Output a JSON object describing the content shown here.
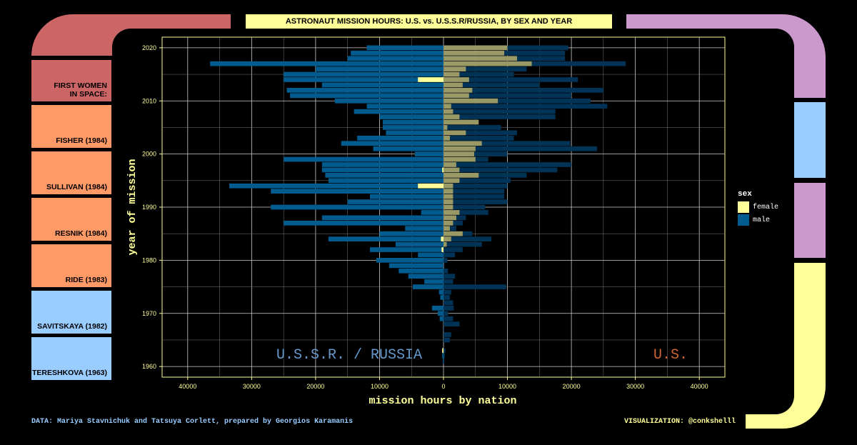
{
  "title": "ASTRONAUT MISSION HOURS: U.S. vs. U.S.S.R/RUSSIA, BY SEX AND YEAR",
  "sidebar": {
    "items": [
      {
        "label": "FIRST WOMEN\nIN SPACE:",
        "color": "#cc6666"
      },
      {
        "label": "FISHER (1984)",
        "color": "#ff9966"
      },
      {
        "label": "SULLIVAN (1984)",
        "color": "#ff9966"
      },
      {
        "label": "RESNIK (1984)",
        "color": "#ff9966"
      },
      {
        "label": "RIDE (1983)",
        "color": "#ff9966"
      },
      {
        "label": "SAVITSKAYA (1982)",
        "color": "#99ccff"
      },
      {
        "label": "TERESHKOVA (1963)",
        "color": "#99ccff"
      }
    ]
  },
  "right_panel": {
    "colors": [
      "#99ccff",
      "#cc99cc",
      "#ffff99"
    ]
  },
  "caption": {
    "data_source": "DATA: Mariya Stavnichuk and Tatsuya Corlett, prepared by Georgios Karamanis",
    "visualization": "VISUALIZATION: @conkshelll"
  },
  "legend": {
    "title": "sex",
    "items": [
      {
        "label": "female",
        "color": "#ffff99"
      },
      {
        "label": "male",
        "color": "#005b8f"
      }
    ]
  },
  "chart_data": {
    "type": "bar",
    "orientation": "horizontal-diverging",
    "title": "ASTRONAUT MISSION HOURS: U.S. vs. U.S.S.R/RUSSIA, BY SEX AND YEAR",
    "xlabel": "mission hours by nation",
    "ylabel": "year of mission",
    "xlim": [
      -44000,
      44000
    ],
    "ylim": [
      1958,
      2022
    ],
    "x_ticks": [
      -40000,
      -30000,
      -20000,
      -10000,
      0,
      10000,
      20000,
      30000,
      40000
    ],
    "x_tick_labels": [
      "40000",
      "30000",
      "20000",
      "10000",
      "0",
      "10000",
      "20000",
      "30000",
      "40000"
    ],
    "y_ticks": [
      1960,
      1970,
      1980,
      1990,
      2000,
      2010,
      2020
    ],
    "left_label": "U.S.S.R. / RUSSIA",
    "right_label": "U.S.",
    "left_label_color": "#6699cc",
    "right_label_color": "#cc6633",
    "colors": {
      "male_left": "#005b8f",
      "male_right": "#003355",
      "female_left": "#ffff99",
      "female_right": "#999966"
    },
    "series": [
      {
        "name": "U.S.S.R./Russia male",
        "values": [
          [
            1961,
            -100
          ],
          [
            1962,
            -200
          ],
          [
            1963,
            -150
          ],
          [
            1969,
            -600
          ],
          [
            1970,
            -900
          ],
          [
            1971,
            -1800
          ],
          [
            1973,
            -500
          ],
          [
            1974,
            -700
          ],
          [
            1975,
            -4800
          ],
          [
            1976,
            -3000
          ],
          [
            1977,
            -5500
          ],
          [
            1978,
            -7000
          ],
          [
            1979,
            -8500
          ],
          [
            1980,
            -10500
          ],
          [
            1981,
            -4000
          ],
          [
            1982,
            -11500
          ],
          [
            1983,
            -7500
          ],
          [
            1984,
            -18000
          ],
          [
            1985,
            -10000
          ],
          [
            1986,
            -6000
          ],
          [
            1987,
            -25000
          ],
          [
            1988,
            -19000
          ],
          [
            1989,
            -3500
          ],
          [
            1990,
            -27000
          ],
          [
            1991,
            -15000
          ],
          [
            1992,
            -11500
          ],
          [
            1993,
            -27000
          ],
          [
            1994,
            -33500
          ],
          [
            1995,
            -18000
          ],
          [
            1996,
            -18500
          ],
          [
            1997,
            -19000
          ],
          [
            1998,
            -19000
          ],
          [
            1999,
            -25000
          ],
          [
            2000,
            -4500
          ],
          [
            2001,
            -11000
          ],
          [
            2002,
            -16000
          ],
          [
            2003,
            -13500
          ],
          [
            2004,
            -9000
          ],
          [
            2005,
            -9500
          ],
          [
            2006,
            -9500
          ],
          [
            2007,
            -10000
          ],
          [
            2008,
            -14000
          ],
          [
            2009,
            -12000
          ],
          [
            2010,
            -17000
          ],
          [
            2011,
            -24000
          ],
          [
            2012,
            -24500
          ],
          [
            2013,
            -19000
          ],
          [
            2014,
            -25000
          ],
          [
            2015,
            -25000
          ],
          [
            2016,
            -20000
          ],
          [
            2017,
            -36500
          ],
          [
            2018,
            -15000
          ],
          [
            2019,
            -14500
          ],
          [
            2020,
            -12000
          ]
        ]
      },
      {
        "name": "U.S.S.R./Russia female",
        "values": [
          [
            1963,
            -200
          ],
          [
            1982,
            -300
          ],
          [
            1984,
            -400
          ],
          [
            1994,
            -4000
          ],
          [
            1997,
            -200
          ],
          [
            2014,
            -4000
          ]
        ]
      },
      {
        "name": "U.S. male",
        "values": [
          [
            1961,
            100
          ],
          [
            1962,
            200
          ],
          [
            1963,
            300
          ],
          [
            1965,
            1000
          ],
          [
            1966,
            1200
          ],
          [
            1967,
            100
          ],
          [
            1968,
            2500
          ],
          [
            1969,
            1500
          ],
          [
            1970,
            700
          ],
          [
            1971,
            1600
          ],
          [
            1972,
            1500
          ],
          [
            1973,
            1000
          ],
          [
            1974,
            1200
          ],
          [
            1975,
            9800
          ],
          [
            1976,
            1500
          ],
          [
            1977,
            1800
          ],
          [
            1978,
            700
          ],
          [
            1980,
            600
          ],
          [
            1981,
            1800
          ],
          [
            1982,
            3000
          ],
          [
            1983,
            6000
          ],
          [
            1984,
            7500
          ],
          [
            1985,
            4500
          ],
          [
            1986,
            2000
          ],
          [
            1987,
            3000
          ],
          [
            1988,
            3500
          ],
          [
            1989,
            7000
          ],
          [
            1990,
            6500
          ],
          [
            1991,
            10000
          ],
          [
            1992,
            9500
          ],
          [
            1993,
            9500
          ],
          [
            1994,
            10000
          ],
          [
            1995,
            10500
          ],
          [
            1996,
            13000
          ],
          [
            1997,
            17800
          ],
          [
            1998,
            20000
          ],
          [
            1999,
            7000
          ],
          [
            2000,
            10000
          ],
          [
            2001,
            24000
          ],
          [
            2002,
            19800
          ],
          [
            2003,
            11000
          ],
          [
            2004,
            11500
          ],
          [
            2005,
            9000
          ],
          [
            2006,
            3500
          ],
          [
            2007,
            17500
          ],
          [
            2008,
            17500
          ],
          [
            2009,
            25600
          ],
          [
            2010,
            23000
          ],
          [
            2011,
            20000
          ],
          [
            2012,
            25000
          ],
          [
            2013,
            15000
          ],
          [
            2014,
            21000
          ],
          [
            2015,
            11000
          ],
          [
            2016,
            13000
          ],
          [
            2017,
            28500
          ],
          [
            2018,
            19000
          ],
          [
            2019,
            19000
          ],
          [
            2020,
            19500
          ]
        ]
      },
      {
        "name": "U.S. female",
        "values": [
          [
            1983,
            500
          ],
          [
            1984,
            1200
          ],
          [
            1985,
            3000
          ],
          [
            1986,
            1000
          ],
          [
            1987,
            1500
          ],
          [
            1988,
            2000
          ],
          [
            1989,
            2500
          ],
          [
            1990,
            1500
          ],
          [
            1991,
            1500
          ],
          [
            1992,
            1500
          ],
          [
            1993,
            1500
          ],
          [
            1994,
            1500
          ],
          [
            1995,
            2500
          ],
          [
            1996,
            5500
          ],
          [
            1997,
            2500
          ],
          [
            1998,
            2000
          ],
          [
            1999,
            5000
          ],
          [
            2000,
            4800
          ],
          [
            2001,
            5000
          ],
          [
            2002,
            6000
          ],
          [
            2003,
            1000
          ],
          [
            2004,
            3500
          ],
          [
            2005,
            600
          ],
          [
            2006,
            5500
          ],
          [
            2007,
            2500
          ],
          [
            2008,
            1500
          ],
          [
            2009,
            1200
          ],
          [
            2010,
            8500
          ],
          [
            2011,
            4000
          ],
          [
            2012,
            4500
          ],
          [
            2013,
            3000
          ],
          [
            2014,
            4000
          ],
          [
            2015,
            2500
          ],
          [
            2016,
            3500
          ],
          [
            2017,
            13800
          ],
          [
            2018,
            11500
          ],
          [
            2019,
            9500
          ],
          [
            2020,
            10000
          ]
        ]
      }
    ]
  }
}
